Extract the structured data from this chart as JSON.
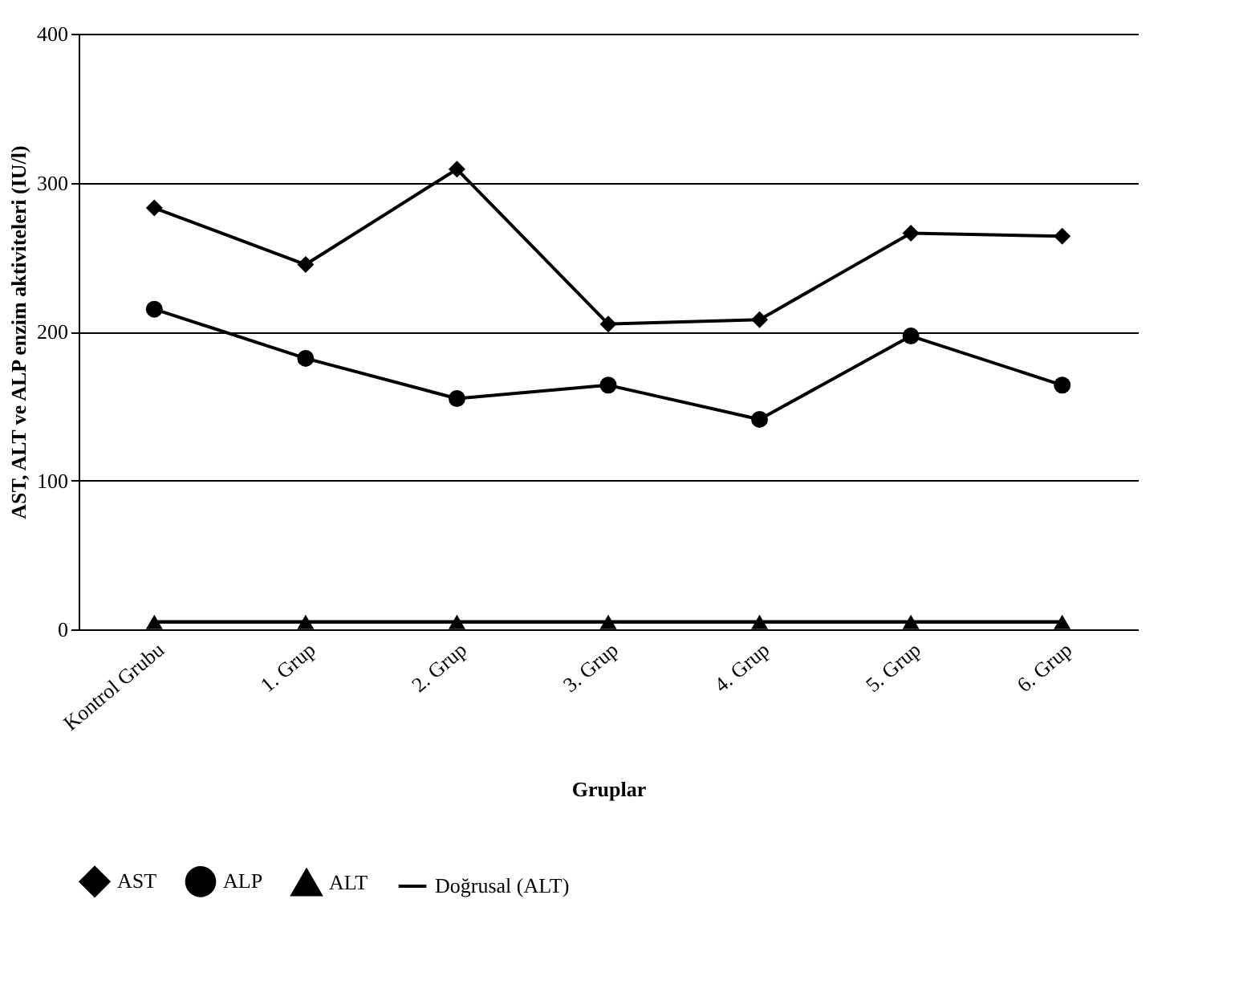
{
  "chart_data": {
    "type": "line",
    "xlabel": "Gruplar",
    "ylabel": "AST, ALT ve ALP enzim aktiviteleri (IU/l)",
    "categories": [
      "Kontrol Grubu",
      "1. Grup",
      "2. Grup",
      "3. Grup",
      "4. Grup",
      "5. Grup",
      "6. Grup"
    ],
    "series": [
      {
        "name": "AST",
        "color": "#000000",
        "marker": "diamond",
        "values": [
          283,
          245,
          309,
          205,
          208,
          266,
          264
        ]
      },
      {
        "name": "ALP",
        "color": "#000000",
        "marker": "circle",
        "values": [
          215,
          182,
          155,
          164,
          141,
          197,
          164
        ]
      },
      {
        "name": "ALT",
        "color": "#000000",
        "marker": "triangle",
        "values": [
          5,
          5,
          5,
          5,
          5,
          5,
          5
        ]
      },
      {
        "name": "Doğrusal (ALT)",
        "type": "line",
        "color": "#000000",
        "marker": "none",
        "values": [
          5,
          5,
          5,
          5,
          5,
          5,
          5
        ]
      }
    ],
    "ylim": [
      0,
      400
    ],
    "yticks": [
      0,
      100,
      200,
      300,
      400
    ],
    "grid": "y",
    "legend": "bottom",
    "line_style": "solid"
  }
}
